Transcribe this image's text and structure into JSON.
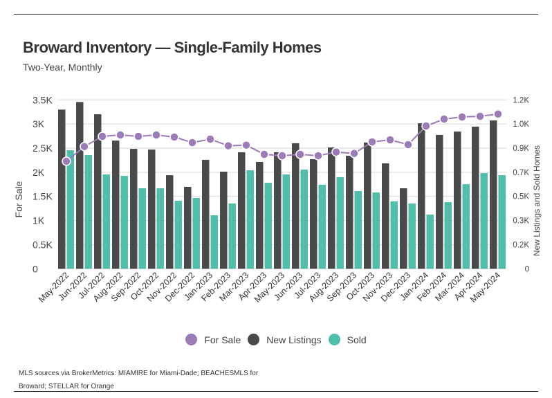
{
  "title": "Broward Inventory — Single-Family Homes",
  "subtitle": "Two-Year, Monthly",
  "source": "MLS sources via BrokerMetrics: MIAMIRE for Miami-Dade; BEACHESMLS for Broward; STELLAR for Orange",
  "colors": {
    "for_sale": "#9b7bb8",
    "new_listings": "#4a4a4a",
    "sold": "#4fbeab"
  },
  "chart_data": {
    "type": "bar",
    "title": "Broward Inventory — Single-Family Homes",
    "ylabel": "For Sale",
    "y2label": "New Listings and Sold Homes",
    "ylim": [
      0,
      3500
    ],
    "y2lim": [
      0,
      1200
    ],
    "yticks": [
      "0",
      "0.5K",
      "1K",
      "1.5K",
      "2K",
      "2.5K",
      "3K",
      "3.5K"
    ],
    "y2ticks": [
      "0",
      "0.2K",
      "0.3K",
      "0.5K",
      "0.7K",
      "0.9K",
      "1.0K",
      "1.2K"
    ],
    "grid": true,
    "legend": "bottom",
    "categories": [
      "May-2022",
      "Jun-2022",
      "Jul-2022",
      "Aug-2022",
      "Sep-2022",
      "Oct-2022",
      "Nov-2022",
      "Dec-2022",
      "Jan-2023",
      "Feb-2023",
      "Mar-2023",
      "Apr-2023",
      "May-2023",
      "Jun-2023",
      "Jul-2023",
      "Aug-2023",
      "Sep-2023",
      "Oct-2023",
      "Nov-2023",
      "Dec-2023",
      "Jan-2024",
      "Feb-2024",
      "Mar-2024",
      "Apr-2024",
      "May-2024"
    ],
    "series": [
      {
        "name": "For Sale",
        "type": "line",
        "axis": "left",
        "values": [
          2228,
          2533,
          2744,
          2773,
          2744,
          2773,
          2730,
          2615,
          2687,
          2548,
          2562,
          2371,
          2343,
          2371,
          2343,
          2419,
          2390,
          2630,
          2672,
          2572,
          2959,
          3103,
          3146,
          3160,
          3207
        ]
      },
      {
        "name": "New Listings",
        "type": "bar",
        "axis": "right",
        "values": [
          1131,
          1185,
          1098,
          911,
          852,
          847,
          665,
          582,
          774,
          690,
          828,
          759,
          828,
          892,
          779,
          862,
          803,
          897,
          749,
          572,
          1034,
          951,
          975,
          1010,
          1054
        ]
      },
      {
        "name": "Sold",
        "type": "bar",
        "axis": "right",
        "values": [
          842,
          808,
          670,
          660,
          572,
          572,
          483,
          503,
          380,
          464,
          700,
          611,
          670,
          705,
          597,
          651,
          552,
          542,
          479,
          464,
          385,
          474,
          601,
          680,
          665
        ]
      }
    ]
  }
}
